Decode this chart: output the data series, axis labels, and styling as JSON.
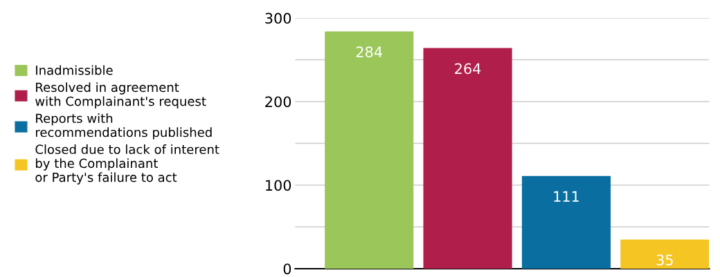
{
  "chart_data": {
    "type": "bar",
    "categories": [
      null,
      null,
      null,
      null
    ],
    "series": [
      {
        "name": "Inadmissible",
        "color": "#9bc75a",
        "values": [
          284,
          null,
          null,
          null
        ]
      },
      {
        "name": "Resolved in agreement\nwith Complainant's request",
        "color": "#b01f4b",
        "values": [
          null,
          264,
          null,
          null
        ]
      },
      {
        "name": "Reports with\nrecommendations published",
        "color": "#0a6fa0",
        "values": [
          null,
          null,
          111,
          null
        ]
      },
      {
        "name": "Closed due to lack of interent\nby the Complainant\nor Party's failure to act",
        "color": "#f5c523",
        "values": [
          null,
          null,
          null,
          35
        ]
      }
    ],
    "ylim": [
      0,
      300
    ],
    "yticks": [
      0,
      {
        "value": 50,
        "label": null
      },
      100,
      {
        "value": 150,
        "label": null
      },
      200,
      {
        "value": 250,
        "label": null
      },
      300
    ],
    "grid": "y",
    "legend": "left",
    "data_labels": true
  }
}
